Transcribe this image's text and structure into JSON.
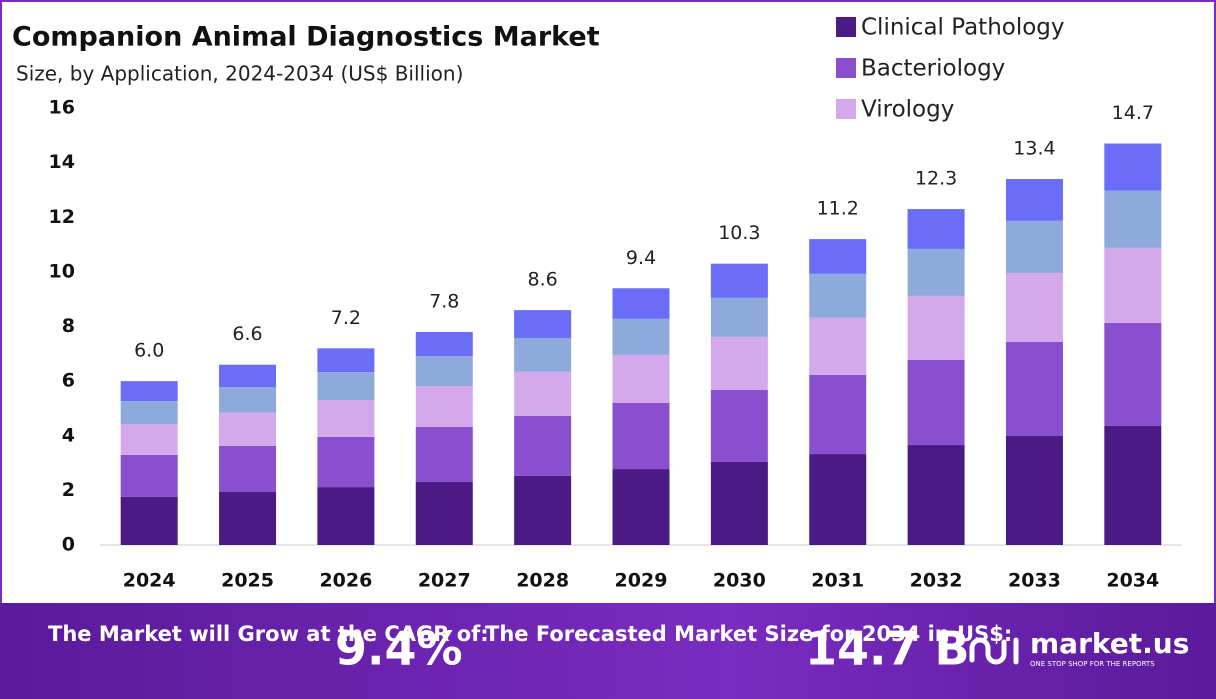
{
  "chart_data": {
    "type": "stacked-bar",
    "title": "Companion Animal Diagnostics Market",
    "subtitle": "Size, by Application, 2024-2034 (US$ Billion)",
    "categories": [
      "2024",
      "2025",
      "2026",
      "2027",
      "2028",
      "2029",
      "2030",
      "2031",
      "2032",
      "2033",
      "2034"
    ],
    "series": [
      {
        "name": "Clinical Pathology",
        "color": "#4b1a85",
        "values": [
          1.76,
          1.94,
          2.12,
          2.31,
          2.53,
          2.78,
          3.04,
          3.33,
          3.66,
          3.99,
          4.36
        ]
      },
      {
        "name": "Bacteriology",
        "color": "#8a4fcf",
        "values": [
          1.54,
          1.69,
          1.84,
          2.01,
          2.2,
          2.42,
          2.64,
          2.9,
          3.12,
          3.45,
          3.77
        ]
      },
      {
        "name": "Virology",
        "color": "#d4a9ec",
        "values": [
          1.13,
          1.21,
          1.35,
          1.5,
          1.61,
          1.76,
          1.94,
          2.09,
          2.34,
          2.52,
          2.75
        ]
      },
      {
        "color": "#8ea9dc",
        "values": [
          0.84,
          0.94,
          1.02,
          1.1,
          1.24,
          1.32,
          1.43,
          1.61,
          1.72,
          1.91,
          2.09
        ]
      },
      {
        "color": "#6b6cf7",
        "values": [
          0.73,
          0.82,
          0.87,
          0.88,
          1.02,
          1.12,
          1.25,
          1.27,
          1.46,
          1.53,
          1.73
        ]
      }
    ],
    "totals": {
      "values": [
        6,
        6.6,
        7.2,
        7.8,
        8.6,
        9.4,
        10.3,
        11.2,
        12.3,
        13.4,
        14.7
      ],
      "value_labels": [
        "6.0",
        "6.6",
        "7.2",
        "7.8",
        "8.6",
        "9.4",
        "10.3",
        "11.2",
        "12.3",
        "13.4",
        "14.7"
      ]
    },
    "ylim": [
      0,
      16
    ],
    "yticks": [
      0,
      2,
      4,
      6,
      8,
      10,
      12,
      14,
      16
    ],
    "grid": false,
    "legend": "top-right"
  },
  "footer": {
    "cagr_text": "The Market will Grow at the CAGR of:",
    "cagr_value": "9.4%",
    "forecast_text": "The Forecasted Market Size for 2034 in US$:",
    "forecast_value": "14.7 B",
    "brand": "market.us",
    "tagline": "ONE STOP SHOP FOR THE REPORTS"
  }
}
